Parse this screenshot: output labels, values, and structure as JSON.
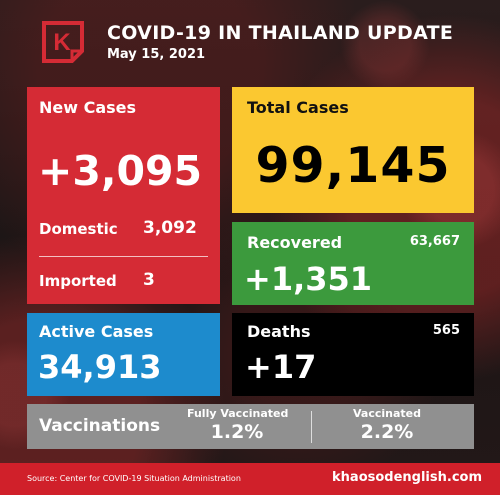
{
  "brand": {
    "logo_letter": "K",
    "logo_color": "#d52b35"
  },
  "header": {
    "title": "COVID-19 IN THAILAND UPDATE",
    "date": "May 15, 2021"
  },
  "new_cases": {
    "label": "New Cases",
    "value": "+3,095",
    "domestic_label": "Domestic",
    "domestic_value": "3,092",
    "imported_label": "Imported",
    "imported_value": "3",
    "color": "#d52b35"
  },
  "total_cases": {
    "label": "Total Cases",
    "value": "99,145",
    "color": "#fbc830"
  },
  "recovered": {
    "label": "Recovered",
    "total": "63,667",
    "value": "+1,351",
    "color": "#3c9a3d"
  },
  "active_cases": {
    "label": "Active Cases",
    "value": "34,913",
    "color": "#1d8bcd"
  },
  "deaths": {
    "label": "Deaths",
    "total": "565",
    "value": "+17",
    "color": "#000000"
  },
  "vaccinations": {
    "label": "Vaccinations",
    "fully_label": "Fully Vaccinated",
    "fully_value": "1.2%",
    "vacc_label": "Vaccinated",
    "vacc_value": "2.2%",
    "color": "#909090"
  },
  "footer": {
    "source": "Source: Center for COVID-19 Situation Administration",
    "site": "khaosodenglish.com"
  }
}
